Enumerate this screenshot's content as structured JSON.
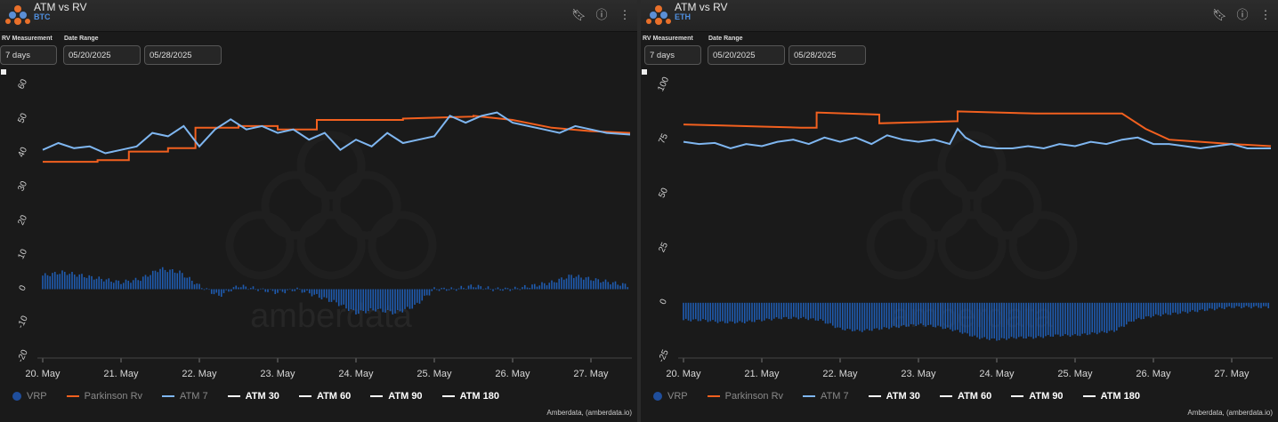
{
  "panels": [
    {
      "title": "ATM vs RV",
      "subtitle": "BTC",
      "controls": {
        "rv_label": "RV Measurement",
        "date_label": "Date Range",
        "rv_value": "7 days",
        "date_start": "05/20/2025",
        "date_end": "05/28/2025"
      },
      "credit": "Amberdata, (amberdata.io)",
      "watermark": "amberdata"
    },
    {
      "title": "ATM vs RV",
      "subtitle": "ETH",
      "controls": {
        "rv_label": "RV Measurement",
        "date_label": "Date Range",
        "rv_value": "7 days",
        "date_start": "05/20/2025",
        "date_end": "05/28/2025"
      },
      "credit": "Amberdata, (amberdata.io)",
      "watermark": "amberdata"
    }
  ],
  "legend": [
    {
      "label": "VRP",
      "color": "#1f4e9c",
      "symbol": "dot",
      "muted": true
    },
    {
      "label": "Parkinson Rv",
      "color": "#f2601f",
      "symbol": "line",
      "muted": true
    },
    {
      "label": "ATM 7",
      "color": "#7fb6f0",
      "symbol": "line",
      "muted": true
    },
    {
      "label": "ATM 30",
      "color": "#ffffff",
      "symbol": "line",
      "muted": false
    },
    {
      "label": "ATM 60",
      "color": "#ffffff",
      "symbol": "line",
      "muted": false
    },
    {
      "label": "ATM 90",
      "color": "#ffffff",
      "symbol": "line",
      "muted": false
    },
    {
      "label": "ATM 180",
      "color": "#ffffff",
      "symbol": "line",
      "muted": false
    }
  ],
  "colors": {
    "vrp": "#1f5bb0",
    "parkinson": "#f2601f",
    "atm7": "#7fb6f0"
  },
  "chart_data": [
    {
      "type": "line",
      "asset": "BTC",
      "x_ticks": [
        "20. May",
        "21. May",
        "22. May",
        "23. May",
        "24. May",
        "25. May",
        "26. May",
        "27. May"
      ],
      "y_ticks": [
        "60",
        "50",
        "40",
        "30",
        "20",
        "10",
        "0",
        "-10",
        "-20"
      ],
      "ylim": [
        -20,
        60
      ],
      "xlim": [
        0,
        7.5
      ],
      "series": [
        {
          "name": "Parkinson Rv",
          "key": "parkinson",
          "x": [
            0,
            0.3,
            0.3,
            0.7,
            0.7,
            1.1,
            1.1,
            1.6,
            1.6,
            1.95,
            1.95,
            2.5,
            2.5,
            3.0,
            3.0,
            3.5,
            3.5,
            4.6,
            4.6,
            5.5,
            5.5,
            6.0,
            6.5,
            7.0,
            7.5
          ],
          "y": [
            37.5,
            37.5,
            37.5,
            37.5,
            38.0,
            38.0,
            40.5,
            40.5,
            41.5,
            41.5,
            47.5,
            47.5,
            48.0,
            48.0,
            47.0,
            47.0,
            49.8,
            49.8,
            50.2,
            50.8,
            51.0,
            49.8,
            47.5,
            46.5,
            46.0
          ]
        },
        {
          "name": "ATM 7",
          "key": "atm7",
          "x": [
            0,
            0.2,
            0.4,
            0.6,
            0.8,
            1.0,
            1.2,
            1.4,
            1.6,
            1.8,
            2.0,
            2.2,
            2.4,
            2.6,
            2.8,
            3.0,
            3.2,
            3.4,
            3.6,
            3.8,
            4.0,
            4.2,
            4.4,
            4.6,
            4.8,
            5.0,
            5.2,
            5.4,
            5.6,
            5.8,
            6.0,
            6.2,
            6.4,
            6.6,
            6.8,
            7.0,
            7.2,
            7.5
          ],
          "y": [
            41,
            43,
            41.5,
            42,
            40,
            41,
            42,
            46,
            45,
            48,
            42,
            47,
            50,
            47,
            48,
            46,
            47,
            44,
            46,
            41,
            44,
            42,
            46,
            43,
            44,
            45,
            51,
            49,
            51,
            52,
            49,
            48,
            47,
            46,
            48,
            47,
            46,
            45.5
          ]
        },
        {
          "name": "VRP",
          "key": "vrp",
          "x": [
            0,
            0.25,
            0.5,
            0.75,
            1.0,
            1.25,
            1.5,
            1.75,
            2.0,
            2.25,
            2.5,
            2.75,
            3.0,
            3.25,
            3.5,
            3.75,
            4.0,
            4.25,
            4.5,
            4.75,
            5.0,
            5.25,
            5.5,
            5.75,
            6.0,
            6.25,
            6.5,
            6.75,
            7.0,
            7.25,
            7.5
          ],
          "y": [
            4,
            5,
            4,
            3,
            2,
            3,
            6,
            5,
            1,
            -2,
            1,
            0,
            -1,
            0,
            -2,
            -4,
            -7,
            -6,
            -7,
            -5,
            0,
            0,
            1,
            0,
            0,
            1,
            2,
            4,
            3,
            2,
            1
          ]
        }
      ]
    },
    {
      "type": "line",
      "asset": "ETH",
      "x_ticks": [
        "20. May",
        "21. May",
        "22. May",
        "23. May",
        "24. May",
        "25. May",
        "26. May",
        "27. May"
      ],
      "y_ticks": [
        "100",
        "75",
        "50",
        "25",
        "0",
        "-25"
      ],
      "ylim": [
        -25,
        100
      ],
      "xlim": [
        0,
        7.5
      ],
      "series": [
        {
          "name": "Parkinson Rv",
          "key": "parkinson",
          "x": [
            0,
            0.5,
            1.0,
            1.5,
            1.7,
            1.7,
            2.5,
            2.5,
            3.0,
            3.5,
            3.5,
            4.5,
            5.0,
            5.6,
            5.9,
            6.2,
            6.6,
            7.0,
            7.5
          ],
          "y": [
            82,
            81.5,
            81,
            80.5,
            80.5,
            87.5,
            86.5,
            82.5,
            83,
            83.5,
            88,
            87,
            87,
            87,
            80,
            75,
            74,
            73,
            72
          ]
        },
        {
          "name": "ATM 7",
          "key": "atm7",
          "x": [
            0,
            0.2,
            0.4,
            0.6,
            0.8,
            1.0,
            1.2,
            1.4,
            1.6,
            1.8,
            2.0,
            2.2,
            2.4,
            2.6,
            2.8,
            3.0,
            3.2,
            3.4,
            3.5,
            3.6,
            3.8,
            4.0,
            4.2,
            4.4,
            4.6,
            4.8,
            5.0,
            5.2,
            5.4,
            5.6,
            5.8,
            6.0,
            6.2,
            6.4,
            6.6,
            6.8,
            7.0,
            7.2,
            7.5
          ],
          "y": [
            74,
            73,
            73.5,
            71,
            73,
            72,
            74,
            75,
            73,
            76,
            74,
            76,
            73,
            77,
            75,
            74,
            75,
            73,
            80,
            76,
            72,
            71,
            71,
            72,
            71,
            73,
            72,
            74,
            73,
            75,
            76,
            73,
            73,
            72,
            71,
            72,
            73,
            71,
            71
          ]
        },
        {
          "name": "VRP",
          "key": "vrp",
          "x": [
            0,
            0.25,
            0.5,
            0.75,
            1.0,
            1.25,
            1.5,
            1.75,
            2.0,
            2.25,
            2.5,
            2.75,
            3.0,
            3.25,
            3.5,
            3.75,
            4.0,
            4.25,
            4.5,
            4.75,
            5.0,
            5.25,
            5.5,
            5.75,
            6.0,
            6.25,
            6.5,
            6.75,
            7.0,
            7.25,
            7.5
          ],
          "y": [
            -8,
            -8,
            -9,
            -9,
            -8,
            -7,
            -7,
            -8,
            -12,
            -13,
            -12,
            -11,
            -10,
            -11,
            -13,
            -16,
            -17,
            -16,
            -16,
            -15,
            -15,
            -14,
            -13,
            -8,
            -6,
            -5,
            -4,
            -3,
            -2,
            -2,
            -2
          ]
        }
      ]
    }
  ]
}
